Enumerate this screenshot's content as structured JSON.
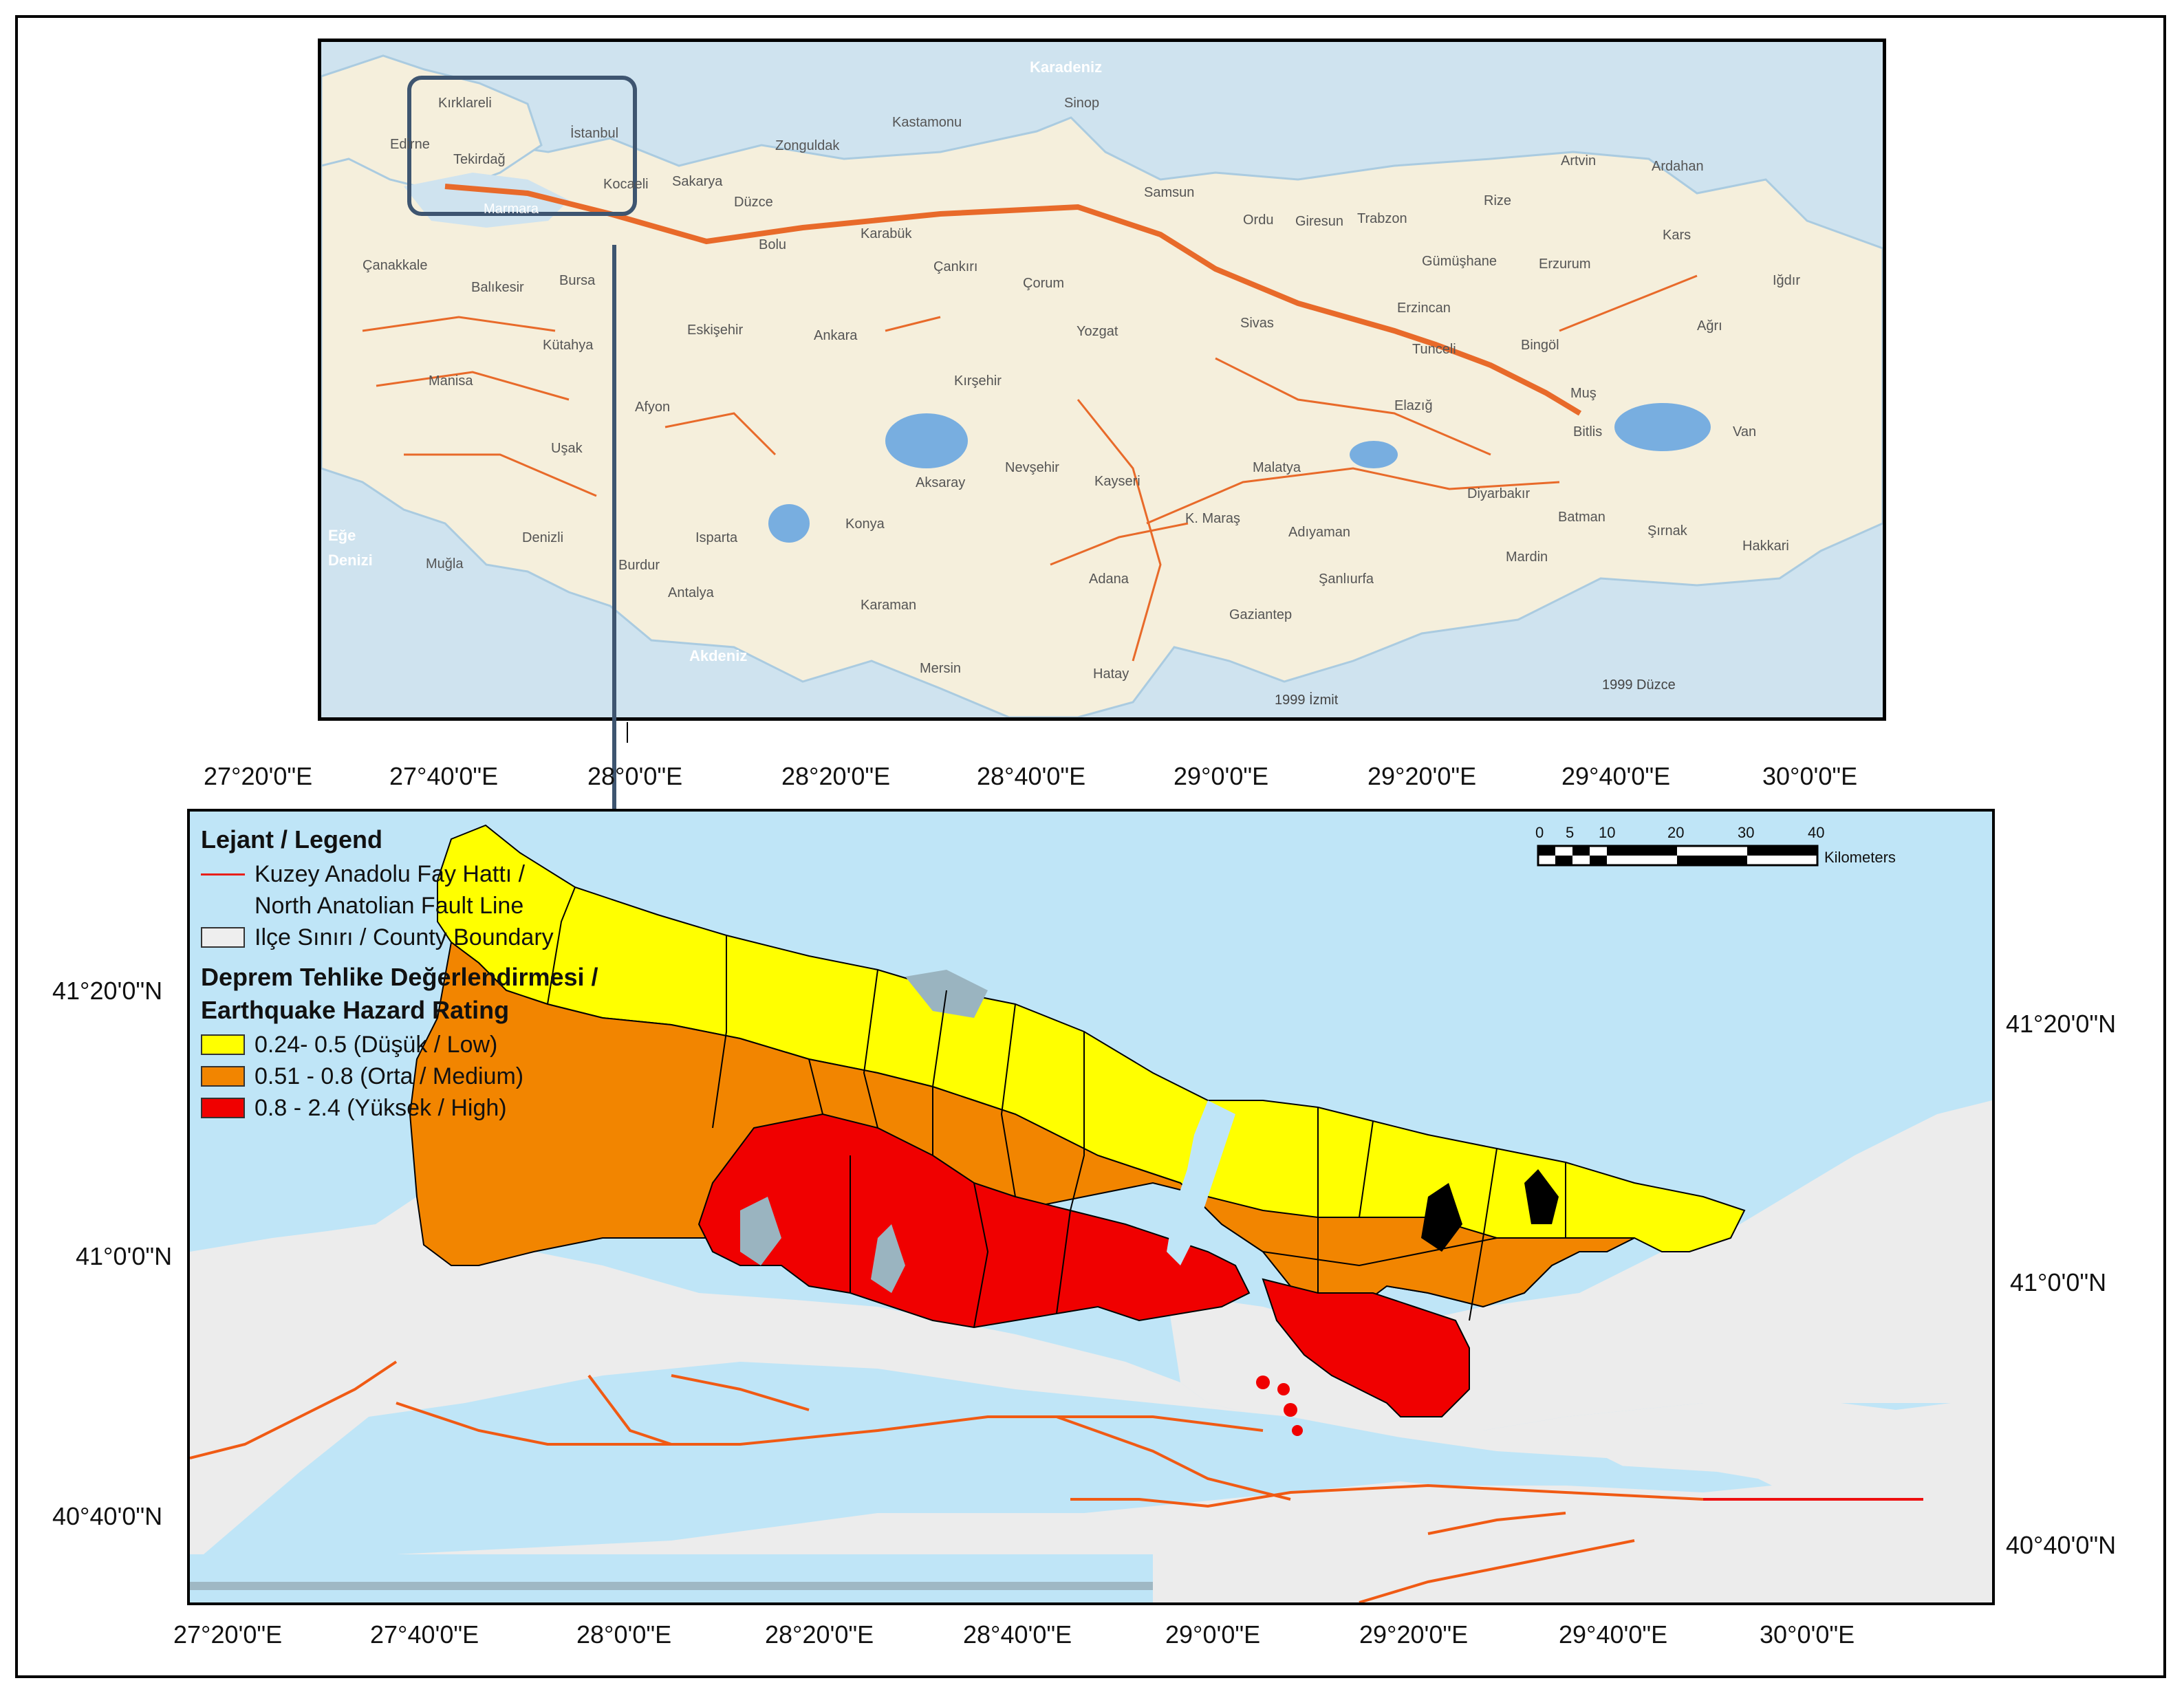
{
  "inset": {
    "cities": [
      "Kırklareli",
      "Edirne",
      "Tekirdağ",
      "İstanbul",
      "Kocaeli",
      "Sakarya",
      "Zonguldak",
      "Kastamonu",
      "Sinop",
      "Düzce",
      "Marmara",
      "Çanakkale",
      "Balıkesir",
      "Bursa",
      "Bolu",
      "Karabük",
      "Çankırı",
      "Çorum",
      "Samsun",
      "Ordu",
      "Giresun",
      "Trabzon",
      "Rize",
      "Artvin",
      "Ardahan",
      "Kars",
      "Iğdır",
      "Ağrı",
      "Gümüşhane",
      "Erzurum",
      "Erzincan",
      "Tunceli",
      "Bingöl",
      "Muş",
      "Bitlis",
      "Van",
      "Kütahya",
      "Eskişehir",
      "Ankara",
      "Yozgat",
      "Sivas",
      "Kırşehir",
      "Manisa",
      "Afyon",
      "Uşak",
      "Elazığ",
      "Malatya",
      "Aksaray",
      "Nevşehir",
      "Kayseri",
      "Diyarbakır",
      "Batman",
      "Şırnak",
      "Hakkari",
      "Denizli",
      "Isparta",
      "Konya",
      "K. Maraş",
      "Adıyaman",
      "Şanlıurfa",
      "Mardin",
      "Muğla",
      "Burdur",
      "Antalya",
      "Karaman",
      "Gaziantep",
      "Adana",
      "Mersin",
      "Hatay"
    ],
    "seas": [
      "Karadeniz",
      "Eğe Denizi",
      "Akdeniz"
    ],
    "events": [
      "1999 İzmit",
      "1999 Düzce"
    ],
    "colors": {
      "sea": "#cfe3ef",
      "land": "#f5efdc",
      "fault": "#e86a2a"
    }
  },
  "main_map": {
    "top_longitudes": [
      "27°20'0\"E",
      "27°40'0\"E",
      "28°0'0\"E",
      "28°20'0\"E",
      "28°40'0\"E",
      "29°0'0\"E",
      "29°20'0\"E",
      "29°40'0\"E",
      "30°0'0\"E"
    ],
    "bottom_longitudes": [
      "27°20'0\"E",
      "27°40'0\"E",
      "28°0'0\"E",
      "28°20'0\"E",
      "28°40'0\"E",
      "29°0'0\"E",
      "29°20'0\"E",
      "29°40'0\"E",
      "30°0'0\"E"
    ],
    "left_latitudes": [
      "41°20'0\"N",
      "41°0'0\"N",
      "40°40'0\"N"
    ],
    "right_latitudes": [
      "41°20'0\"N",
      "41°0'0\"N",
      "40°40'0\"N"
    ],
    "legend": {
      "title": "Lejant / Legend",
      "fault_label_1": "Kuzey Anadolu Fay Hattı /",
      "fault_label_2": "North Anatolian Fault Line",
      "boundary_label": "Ilçe Sınırı / County Boundary",
      "hazard_title_1": "Deprem Tehlike Değerlendirmesi /",
      "hazard_title_2": "Earthquake Hazard Rating",
      "classes": [
        {
          "label": "0.24- 0.5 (Düşük / Low)",
          "color": "#ffff00"
        },
        {
          "label": "0.51 - 0.8 (Orta / Medium)",
          "color": "#f28500"
        },
        {
          "label": "0.8 - 2.4 (Yüksek / High)",
          "color": "#f00000"
        }
      ]
    },
    "scale_bar": {
      "ticks": [
        "0",
        "5",
        "10",
        "20",
        "30",
        "40"
      ],
      "unit": "Kilometers"
    },
    "colors": {
      "sea": "#bfe5f7",
      "land": "#ececec",
      "fault": "#f05a14",
      "low": "#ffff00",
      "medium": "#f28500",
      "high": "#f00000"
    }
  }
}
